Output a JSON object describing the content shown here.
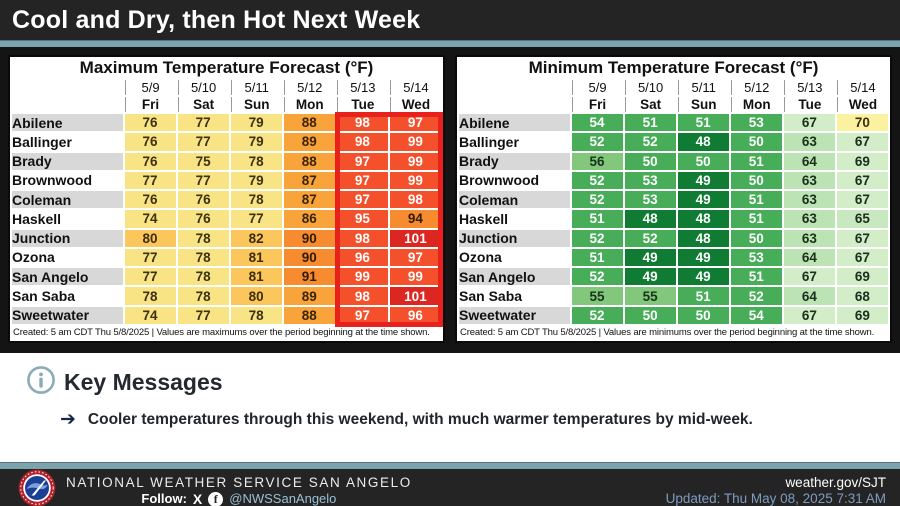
{
  "header": {
    "title": "Cool and Dry, then Hot Next Week"
  },
  "tables": {
    "max": {
      "title": "Maximum Temperature Forecast (°F)",
      "dates": [
        "5/9",
        "5/10",
        "5/11",
        "5/12",
        "5/13",
        "5/14"
      ],
      "days": [
        "Fri",
        "Sat",
        "Sun",
        "Mon",
        "Tue",
        "Wed"
      ],
      "rows": [
        {
          "city": "Abilene",
          "values": [
            76,
            77,
            79,
            88,
            98,
            97
          ]
        },
        {
          "city": "Ballinger",
          "values": [
            76,
            77,
            79,
            89,
            98,
            99
          ]
        },
        {
          "city": "Brady",
          "values": [
            76,
            75,
            78,
            88,
            97,
            99
          ]
        },
        {
          "city": "Brownwood",
          "values": [
            77,
            77,
            79,
            87,
            97,
            99
          ]
        },
        {
          "city": "Coleman",
          "values": [
            76,
            76,
            78,
            87,
            97,
            98
          ]
        },
        {
          "city": "Haskell",
          "values": [
            74,
            76,
            77,
            86,
            95,
            94
          ]
        },
        {
          "city": "Junction",
          "values": [
            80,
            78,
            82,
            90,
            98,
            101
          ]
        },
        {
          "city": "Ozona",
          "values": [
            77,
            78,
            81,
            90,
            96,
            97
          ]
        },
        {
          "city": "San Angelo",
          "values": [
            77,
            78,
            81,
            91,
            99,
            99
          ]
        },
        {
          "city": "San Saba",
          "values": [
            78,
            78,
            80,
            89,
            98,
            101
          ]
        },
        {
          "city": "Sweetwater",
          "values": [
            74,
            77,
            78,
            88,
            97,
            96
          ]
        }
      ],
      "caption": "Created: 5 am CDT Thu 5/8/2025  |  Values are maximums over the period beginning at the time shown.",
      "highlight": {
        "columns": [
          "5/13",
          "5/14"
        ],
        "color": "#e8211c"
      }
    },
    "min": {
      "title": "Minimum Temperature Forecast (°F)",
      "dates": [
        "5/9",
        "5/10",
        "5/11",
        "5/12",
        "5/13",
        "5/14"
      ],
      "days": [
        "Fri",
        "Sat",
        "Sun",
        "Mon",
        "Tue",
        "Wed"
      ],
      "rows": [
        {
          "city": "Abilene",
          "values": [
            54,
            51,
            51,
            53,
            67,
            70
          ]
        },
        {
          "city": "Ballinger",
          "values": [
            52,
            52,
            48,
            50,
            63,
            67
          ]
        },
        {
          "city": "Brady",
          "values": [
            56,
            50,
            50,
            51,
            64,
            69
          ]
        },
        {
          "city": "Brownwood",
          "values": [
            52,
            53,
            49,
            50,
            63,
            67
          ]
        },
        {
          "city": "Coleman",
          "values": [
            52,
            53,
            49,
            51,
            63,
            67
          ]
        },
        {
          "city": "Haskell",
          "values": [
            51,
            48,
            48,
            51,
            63,
            65
          ]
        },
        {
          "city": "Junction",
          "values": [
            52,
            52,
            48,
            50,
            63,
            67
          ]
        },
        {
          "city": "Ozona",
          "values": [
            51,
            49,
            49,
            53,
            64,
            67
          ]
        },
        {
          "city": "San Angelo",
          "values": [
            52,
            49,
            49,
            51,
            67,
            69
          ]
        },
        {
          "city": "San Saba",
          "values": [
            55,
            55,
            51,
            52,
            64,
            68
          ]
        },
        {
          "city": "Sweetwater",
          "values": [
            52,
            50,
            50,
            54,
            67,
            69
          ]
        }
      ],
      "caption": "Created: 5 am CDT Thu 5/8/2025  |  Values are minimums over the period beginning at the time shown."
    }
  },
  "key_messages": {
    "icon": "info-icon",
    "title": "Key Messages",
    "items": [
      "Cooler temperatures through this weekend, with much warmer temperatures by mid-week."
    ]
  },
  "footer": {
    "org": "NATIONAL WEATHER SERVICE SAN ANGELO",
    "follow_label": "Follow:",
    "social_icons": [
      "x-icon",
      "facebook-icon"
    ],
    "social_handle": "@NWSSanAngelo",
    "website": "weather.gov/SJT",
    "updated": "Updated: Thu May 08, 2025 7:31 AM"
  },
  "colors": {
    "accent_stripe": "#7ca4ad",
    "bar_background": "#242424",
    "highlight_red": "#e8211c",
    "max_scale": [
      {
        "max": 79,
        "bg": "#f8e385",
        "fg": "#3c3110"
      },
      {
        "max": 84,
        "bg": "#fbc75d",
        "fg": "#3c2c08"
      },
      {
        "max": 89,
        "bg": "#f9a43b",
        "fg": "#3a2404"
      },
      {
        "max": 94,
        "bg": "#f78b30",
        "fg": "#2f1c03"
      },
      {
        "max": 99,
        "bg": "#f4502b",
        "fg": "#ffffff"
      },
      {
        "max": 150,
        "bg": "#dc2622",
        "fg": "#ffffff"
      }
    ],
    "min_scale": [
      {
        "max": 49,
        "bg": "#107c33",
        "fg": "#ffffff"
      },
      {
        "max": 54,
        "bg": "#47ad58",
        "fg": "#ffffff"
      },
      {
        "max": 56,
        "bg": "#83c77d",
        "fg": "#173517"
      },
      {
        "max": 62,
        "bg": "#9ed694",
        "fg": "#173517"
      },
      {
        "max": 64,
        "bg": "#bce3b4",
        "fg": "#1c2e1c"
      },
      {
        "max": 66,
        "bg": "#c8e8bf",
        "fg": "#1c2e1c"
      },
      {
        "max": 69,
        "bg": "#d2edc8",
        "fg": "#1c2e1c"
      },
      {
        "max": 120,
        "bg": "#faf1a1",
        "fg": "#3c3110"
      }
    ]
  }
}
